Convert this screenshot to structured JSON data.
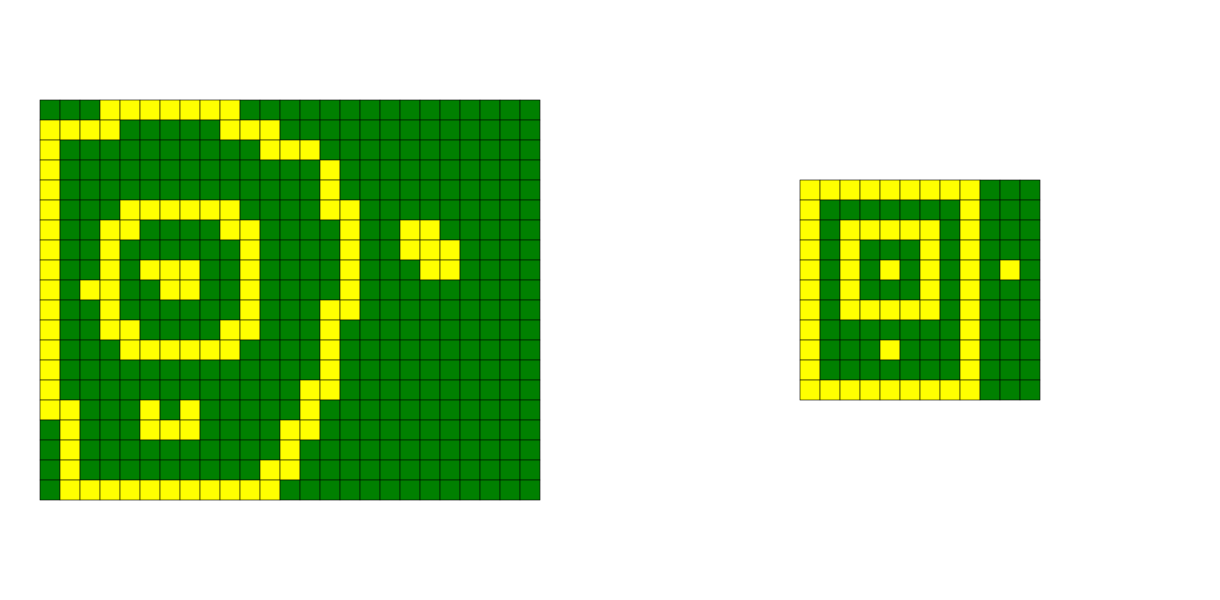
{
  "palette": {
    "0": "#008000",
    "1": "#ffff00"
  },
  "grids": [
    {
      "cells": [
        [
          0,
          0,
          0,
          1,
          1,
          1,
          1,
          1,
          1,
          1,
          0,
          0,
          0,
          0,
          0,
          0,
          0,
          0,
          0,
          0,
          0,
          0,
          0,
          0,
          0
        ],
        [
          1,
          1,
          1,
          1,
          0,
          0,
          0,
          0,
          0,
          1,
          1,
          1,
          0,
          0,
          0,
          0,
          0,
          0,
          0,
          0,
          0,
          0,
          0,
          0,
          0
        ],
        [
          1,
          0,
          0,
          0,
          0,
          0,
          0,
          0,
          0,
          0,
          0,
          1,
          1,
          1,
          0,
          0,
          0,
          0,
          0,
          0,
          0,
          0,
          0,
          0,
          0
        ],
        [
          1,
          0,
          0,
          0,
          0,
          0,
          0,
          0,
          0,
          0,
          0,
          0,
          0,
          0,
          1,
          0,
          0,
          0,
          0,
          0,
          0,
          0,
          0,
          0,
          0
        ],
        [
          1,
          0,
          0,
          0,
          0,
          0,
          0,
          0,
          0,
          0,
          0,
          0,
          0,
          0,
          1,
          0,
          0,
          0,
          0,
          0,
          0,
          0,
          0,
          0,
          0
        ],
        [
          1,
          0,
          0,
          0,
          1,
          1,
          1,
          1,
          1,
          1,
          0,
          0,
          0,
          0,
          1,
          1,
          0,
          0,
          0,
          0,
          0,
          0,
          0,
          0,
          0
        ],
        [
          1,
          0,
          0,
          1,
          1,
          0,
          0,
          0,
          0,
          1,
          1,
          0,
          0,
          0,
          0,
          1,
          0,
          0,
          1,
          1,
          0,
          0,
          0,
          0,
          0
        ],
        [
          1,
          0,
          0,
          1,
          0,
          0,
          0,
          0,
          0,
          0,
          1,
          0,
          0,
          0,
          0,
          1,
          0,
          0,
          1,
          1,
          1,
          0,
          0,
          0,
          0
        ],
        [
          1,
          0,
          0,
          1,
          0,
          1,
          1,
          1,
          0,
          0,
          1,
          0,
          0,
          0,
          0,
          1,
          0,
          0,
          0,
          1,
          1,
          0,
          0,
          0,
          0
        ],
        [
          1,
          0,
          1,
          1,
          0,
          0,
          1,
          1,
          0,
          0,
          1,
          0,
          0,
          0,
          0,
          1,
          0,
          0,
          0,
          0,
          0,
          0,
          0,
          0,
          0
        ],
        [
          1,
          0,
          0,
          1,
          0,
          0,
          0,
          0,
          0,
          0,
          1,
          0,
          0,
          0,
          1,
          1,
          0,
          0,
          0,
          0,
          0,
          0,
          0,
          0,
          0
        ],
        [
          1,
          0,
          0,
          1,
          1,
          0,
          0,
          0,
          0,
          1,
          1,
          0,
          0,
          0,
          1,
          0,
          0,
          0,
          0,
          0,
          0,
          0,
          0,
          0,
          0
        ],
        [
          1,
          0,
          0,
          0,
          1,
          1,
          1,
          1,
          1,
          1,
          0,
          0,
          0,
          0,
          1,
          0,
          0,
          0,
          0,
          0,
          0,
          0,
          0,
          0,
          0
        ],
        [
          1,
          0,
          0,
          0,
          0,
          0,
          0,
          0,
          0,
          0,
          0,
          0,
          0,
          0,
          1,
          0,
          0,
          0,
          0,
          0,
          0,
          0,
          0,
          0,
          0
        ],
        [
          1,
          0,
          0,
          0,
          0,
          0,
          0,
          0,
          0,
          0,
          0,
          0,
          0,
          1,
          1,
          0,
          0,
          0,
          0,
          0,
          0,
          0,
          0,
          0,
          0
        ],
        [
          1,
          1,
          0,
          0,
          0,
          1,
          0,
          1,
          0,
          0,
          0,
          0,
          0,
          1,
          0,
          0,
          0,
          0,
          0,
          0,
          0,
          0,
          0,
          0,
          0
        ],
        [
          0,
          1,
          0,
          0,
          0,
          1,
          1,
          1,
          0,
          0,
          0,
          0,
          1,
          1,
          0,
          0,
          0,
          0,
          0,
          0,
          0,
          0,
          0,
          0,
          0
        ],
        [
          0,
          1,
          0,
          0,
          0,
          0,
          0,
          0,
          0,
          0,
          0,
          0,
          1,
          0,
          0,
          0,
          0,
          0,
          0,
          0,
          0,
          0,
          0,
          0,
          0
        ],
        [
          0,
          1,
          0,
          0,
          0,
          0,
          0,
          0,
          0,
          0,
          0,
          1,
          1,
          0,
          0,
          0,
          0,
          0,
          0,
          0,
          0,
          0,
          0,
          0,
          0
        ],
        [
          0,
          1,
          1,
          1,
          1,
          1,
          1,
          1,
          1,
          1,
          1,
          1,
          0,
          0,
          0,
          0,
          0,
          0,
          0,
          0,
          0,
          0,
          0,
          0,
          0
        ]
      ]
    },
    {
      "cells": [
        [
          1,
          1,
          1,
          1,
          1,
          1,
          1,
          1,
          1,
          0,
          0,
          0
        ],
        [
          1,
          0,
          0,
          0,
          0,
          0,
          0,
          0,
          1,
          0,
          0,
          0
        ],
        [
          1,
          0,
          1,
          1,
          1,
          1,
          1,
          0,
          1,
          0,
          0,
          0
        ],
        [
          1,
          0,
          1,
          0,
          0,
          0,
          1,
          0,
          1,
          0,
          0,
          0
        ],
        [
          1,
          0,
          1,
          0,
          1,
          0,
          1,
          0,
          1,
          0,
          1,
          0
        ],
        [
          1,
          0,
          1,
          0,
          0,
          0,
          1,
          0,
          1,
          0,
          0,
          0
        ],
        [
          1,
          0,
          1,
          1,
          1,
          1,
          1,
          0,
          1,
          0,
          0,
          0
        ],
        [
          1,
          0,
          0,
          0,
          0,
          0,
          0,
          0,
          1,
          0,
          0,
          0
        ],
        [
          1,
          0,
          0,
          0,
          1,
          0,
          0,
          0,
          1,
          0,
          0,
          0
        ],
        [
          1,
          0,
          0,
          0,
          0,
          0,
          0,
          0,
          1,
          0,
          0,
          0
        ],
        [
          1,
          1,
          1,
          1,
          1,
          1,
          1,
          1,
          1,
          0,
          0,
          0
        ]
      ]
    }
  ]
}
